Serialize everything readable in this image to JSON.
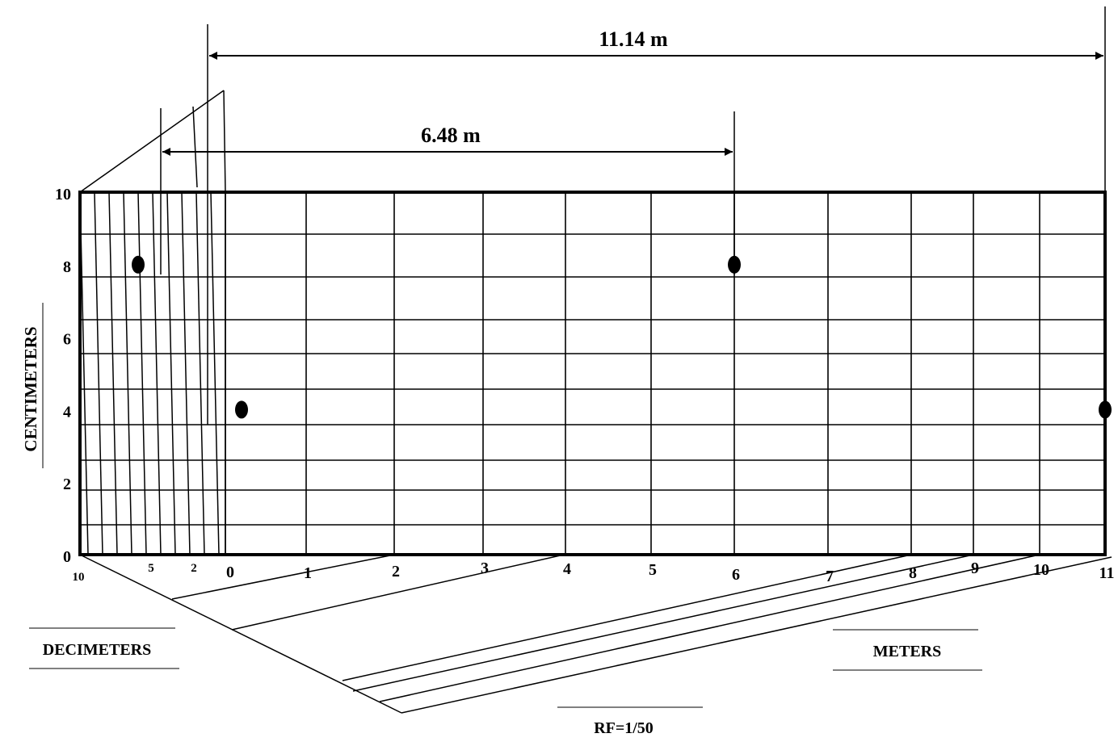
{
  "diagram": {
    "dimension_top": "11.14 m",
    "dimension_inner": "6.48 m",
    "y_axis_title": "CENTIMETERS",
    "y_ticks": [
      "0",
      "2",
      "4",
      "6",
      "8",
      "10"
    ],
    "meter_ticks": [
      "0",
      "1",
      "2",
      "3",
      "4",
      "5",
      "6",
      "7",
      "8",
      "9",
      "10",
      "11"
    ],
    "decimeter_ticks": [
      "10",
      "5",
      "2"
    ],
    "decimeters_label": "DECIMETERS",
    "meters_label": "METERS",
    "rf_label": "RF=1/50",
    "points": [
      {
        "name": "point-a",
        "meters": -0.6,
        "cm": 8
      },
      {
        "name": "point-b",
        "meters": 6,
        "cm": 8
      },
      {
        "name": "point-c",
        "meters": 0.2,
        "cm": 4
      },
      {
        "name": "point-d",
        "meters": 11,
        "cm": 4
      }
    ]
  }
}
